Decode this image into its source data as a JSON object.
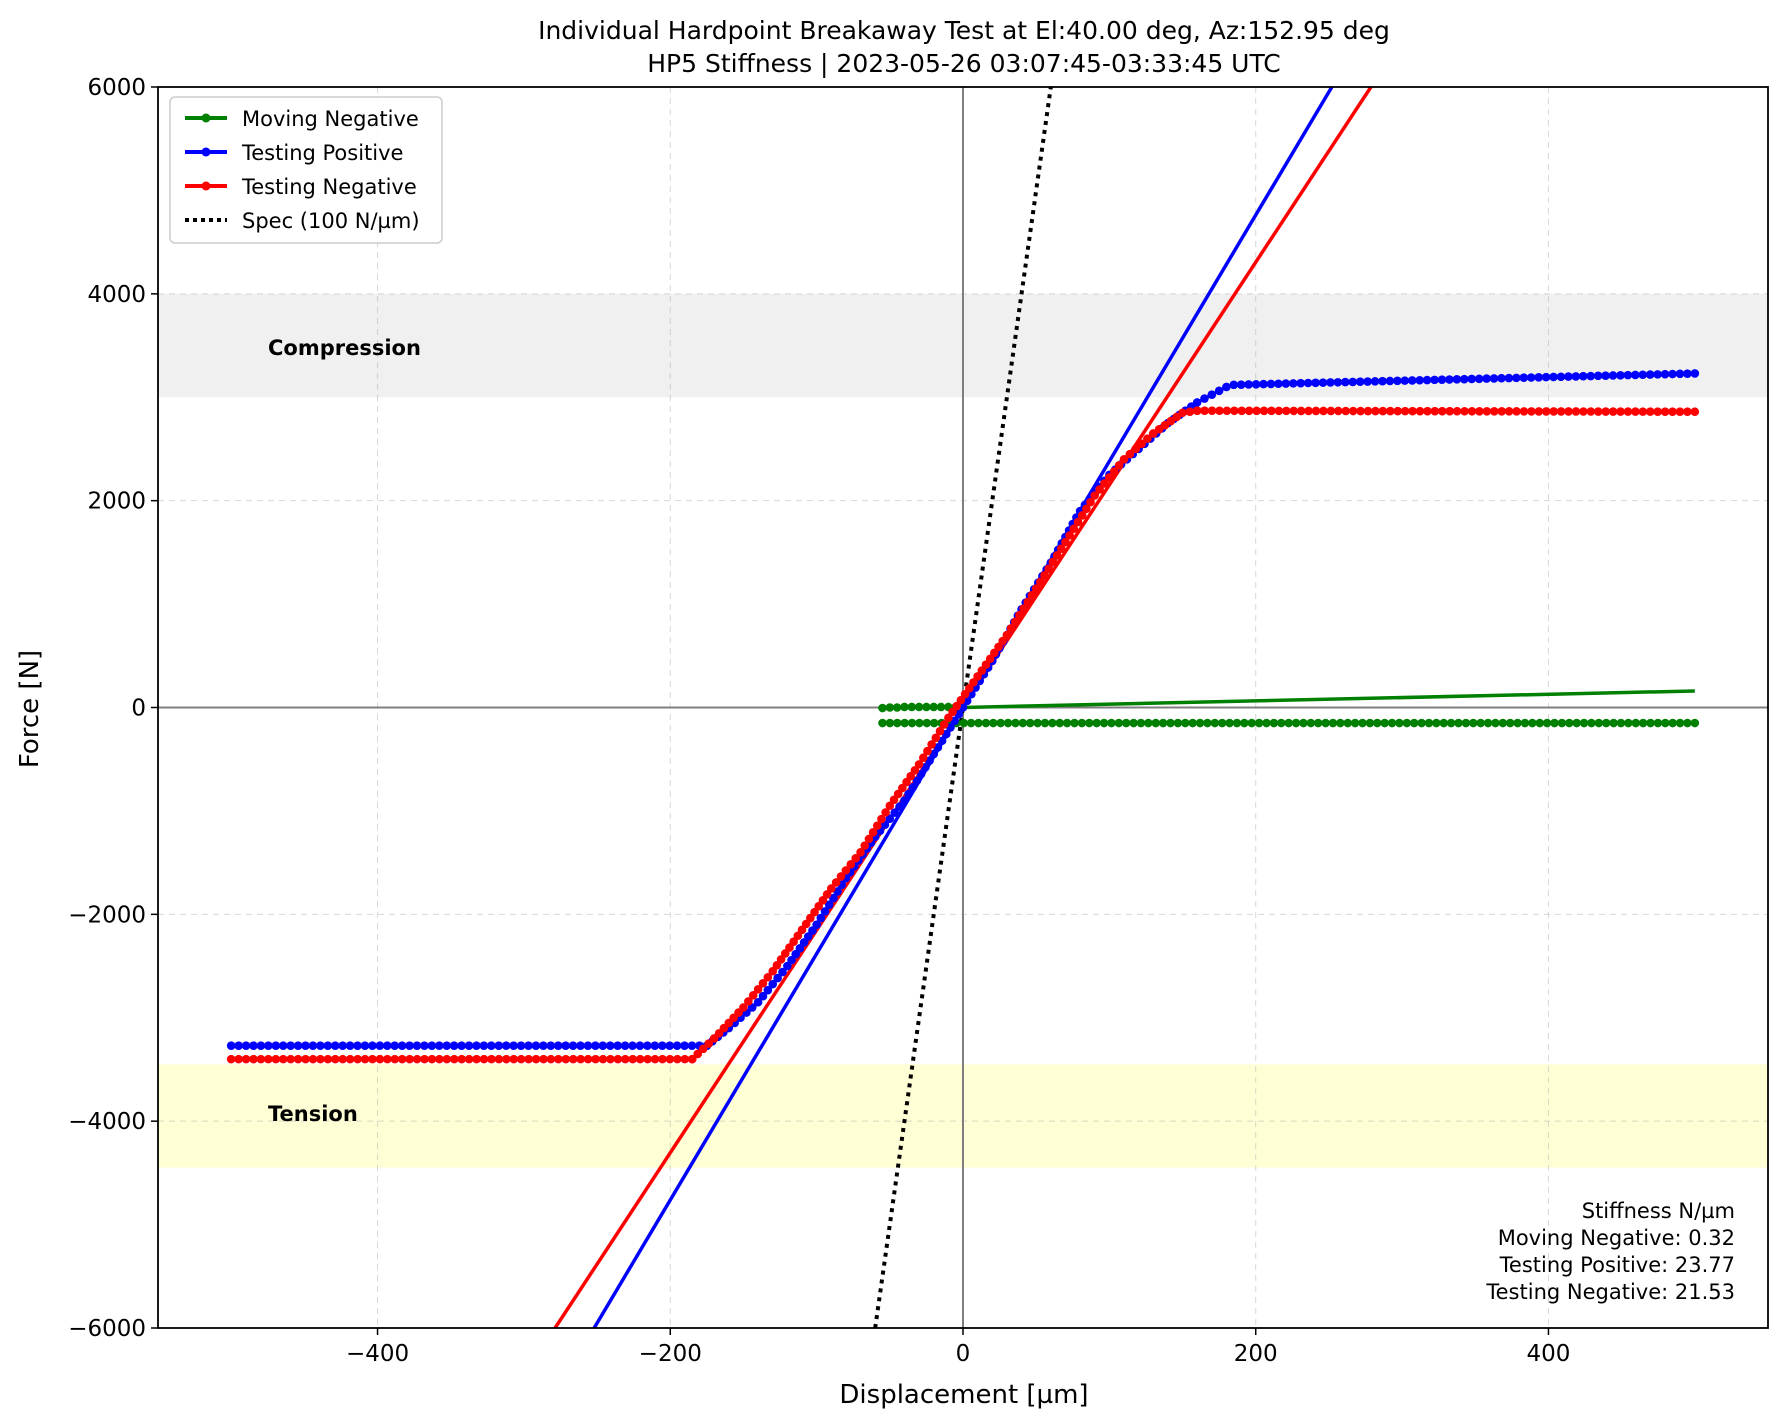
{
  "chart_data": {
    "type": "line",
    "title": "Individual Hardpoint Breakaway Test at El:40.00 deg, Az:152.95 deg",
    "subtitle": "HP5 Stiffness | 2023-05-26 03:07:45-03:33:45 UTC",
    "xlabel": "Displacement [µm]",
    "ylabel": "Force [N]",
    "xlim": [
      -550,
      550
    ],
    "ylim": [
      -6000,
      6000
    ],
    "xticks": [
      -400,
      -200,
      0,
      200,
      400
    ],
    "xtick_labels": [
      "−400",
      "−200",
      "0",
      "200",
      "400"
    ],
    "yticks": [
      -6000,
      -4000,
      -2000,
      0,
      2000,
      4000,
      6000
    ],
    "ytick_labels": [
      "−6000",
      "−4000",
      "−2000",
      "0",
      "2000",
      "4000",
      "6000"
    ],
    "grid": true,
    "bands": [
      {
        "name": "Compression",
        "y0": 3000,
        "y1": 4000,
        "color": "#f0f0f0"
      },
      {
        "name": "Tension",
        "y0": -4450,
        "y1": -3450,
        "color": "#ffffd6"
      }
    ],
    "series": [
      {
        "name": "Moving Negative",
        "color": "#008000",
        "kind": "scatter",
        "segments": [
          {
            "x": [
              -55,
              -50,
              -45,
              -40,
              -35,
              -30,
              -25,
              -20,
              -15,
              -10,
              -5,
              0
            ],
            "y": [
              -5,
              0,
              0,
              5,
              5,
              5,
              5,
              5,
              5,
              5,
              5,
              5
            ]
          },
          {
            "x": [
              -55,
              500
            ],
            "y": [
              -150,
              -150
            ]
          }
        ]
      },
      {
        "name": "Testing Positive",
        "color": "#0000ff",
        "kind": "scatter",
        "segments": [
          {
            "x": [
              -500,
              -175
            ],
            "y": [
              -3270,
              -3270
            ]
          },
          {
            "x": [
              -175,
              -160,
              -140,
              -120,
              -100,
              -80,
              -60,
              -40,
              -20,
              0,
              20,
              40,
              60,
              80,
              100,
              120,
              140,
              160,
              180
            ],
            "y": [
              -3270,
              -3100,
              -2850,
              -2500,
              -2100,
              -1650,
              -1250,
              -900,
              -450,
              0,
              450,
              950,
              1400,
              1900,
              2250,
              2500,
              2750,
              2950,
              3100
            ]
          },
          {
            "x": [
              185,
              500
            ],
            "y": [
              3120,
              3230
            ]
          }
        ]
      },
      {
        "name": "Testing Negative",
        "color": "#ff0000",
        "kind": "scatter",
        "segments": [
          {
            "x": [
              -500,
              -185
            ],
            "y": [
              -3400,
              -3400
            ]
          },
          {
            "x": [
              -185,
              -170,
              -150,
              -130,
              -110,
              -90,
              -70,
              -50,
              -30,
              -10,
              10,
              30,
              50,
              70,
              90,
              110,
              130,
              150,
              160
            ],
            "y": [
              -3400,
              -3200,
              -2900,
              -2550,
              -2150,
              -1750,
              -1400,
              -950,
              -550,
              -100,
              300,
              700,
              1150,
              1600,
              2050,
              2400,
              2650,
              2850,
              2870
            ]
          },
          {
            "x": [
              160,
              500
            ],
            "y": [
              2870,
              2860
            ]
          }
        ]
      }
    ],
    "fit_lines": [
      {
        "name": "Moving Negative fit",
        "color": "#008000",
        "x": [
          0,
          500
        ],
        "y": [
          0,
          160
        ]
      },
      {
        "name": "Testing Positive fit",
        "color": "#0000ff",
        "x": [
          -252,
          252
        ],
        "y": [
          -6000,
          6000
        ]
      },
      {
        "name": "Testing Negative fit",
        "color": "#ff0000",
        "x": [
          -278.7,
          278.7
        ],
        "y": [
          -6000,
          6000
        ]
      },
      {
        "name": "Spec (100 N/µm)",
        "color": "#000000",
        "dashed": true,
        "x": [
          -60,
          60
        ],
        "y": [
          -6000,
          6000
        ]
      }
    ],
    "legend": [
      "Moving Negative",
      "Testing Positive",
      "Testing Negative",
      "Spec (100 N/µm)"
    ],
    "legend_position": "top-left",
    "annotations": {
      "stats_title": "Stiffness N/µm",
      "stats": [
        "Moving Negative: 0.32",
        "Testing Positive: 23.77",
        "Testing Negative: 21.53"
      ],
      "stats_position": "bottom-right"
    }
  }
}
